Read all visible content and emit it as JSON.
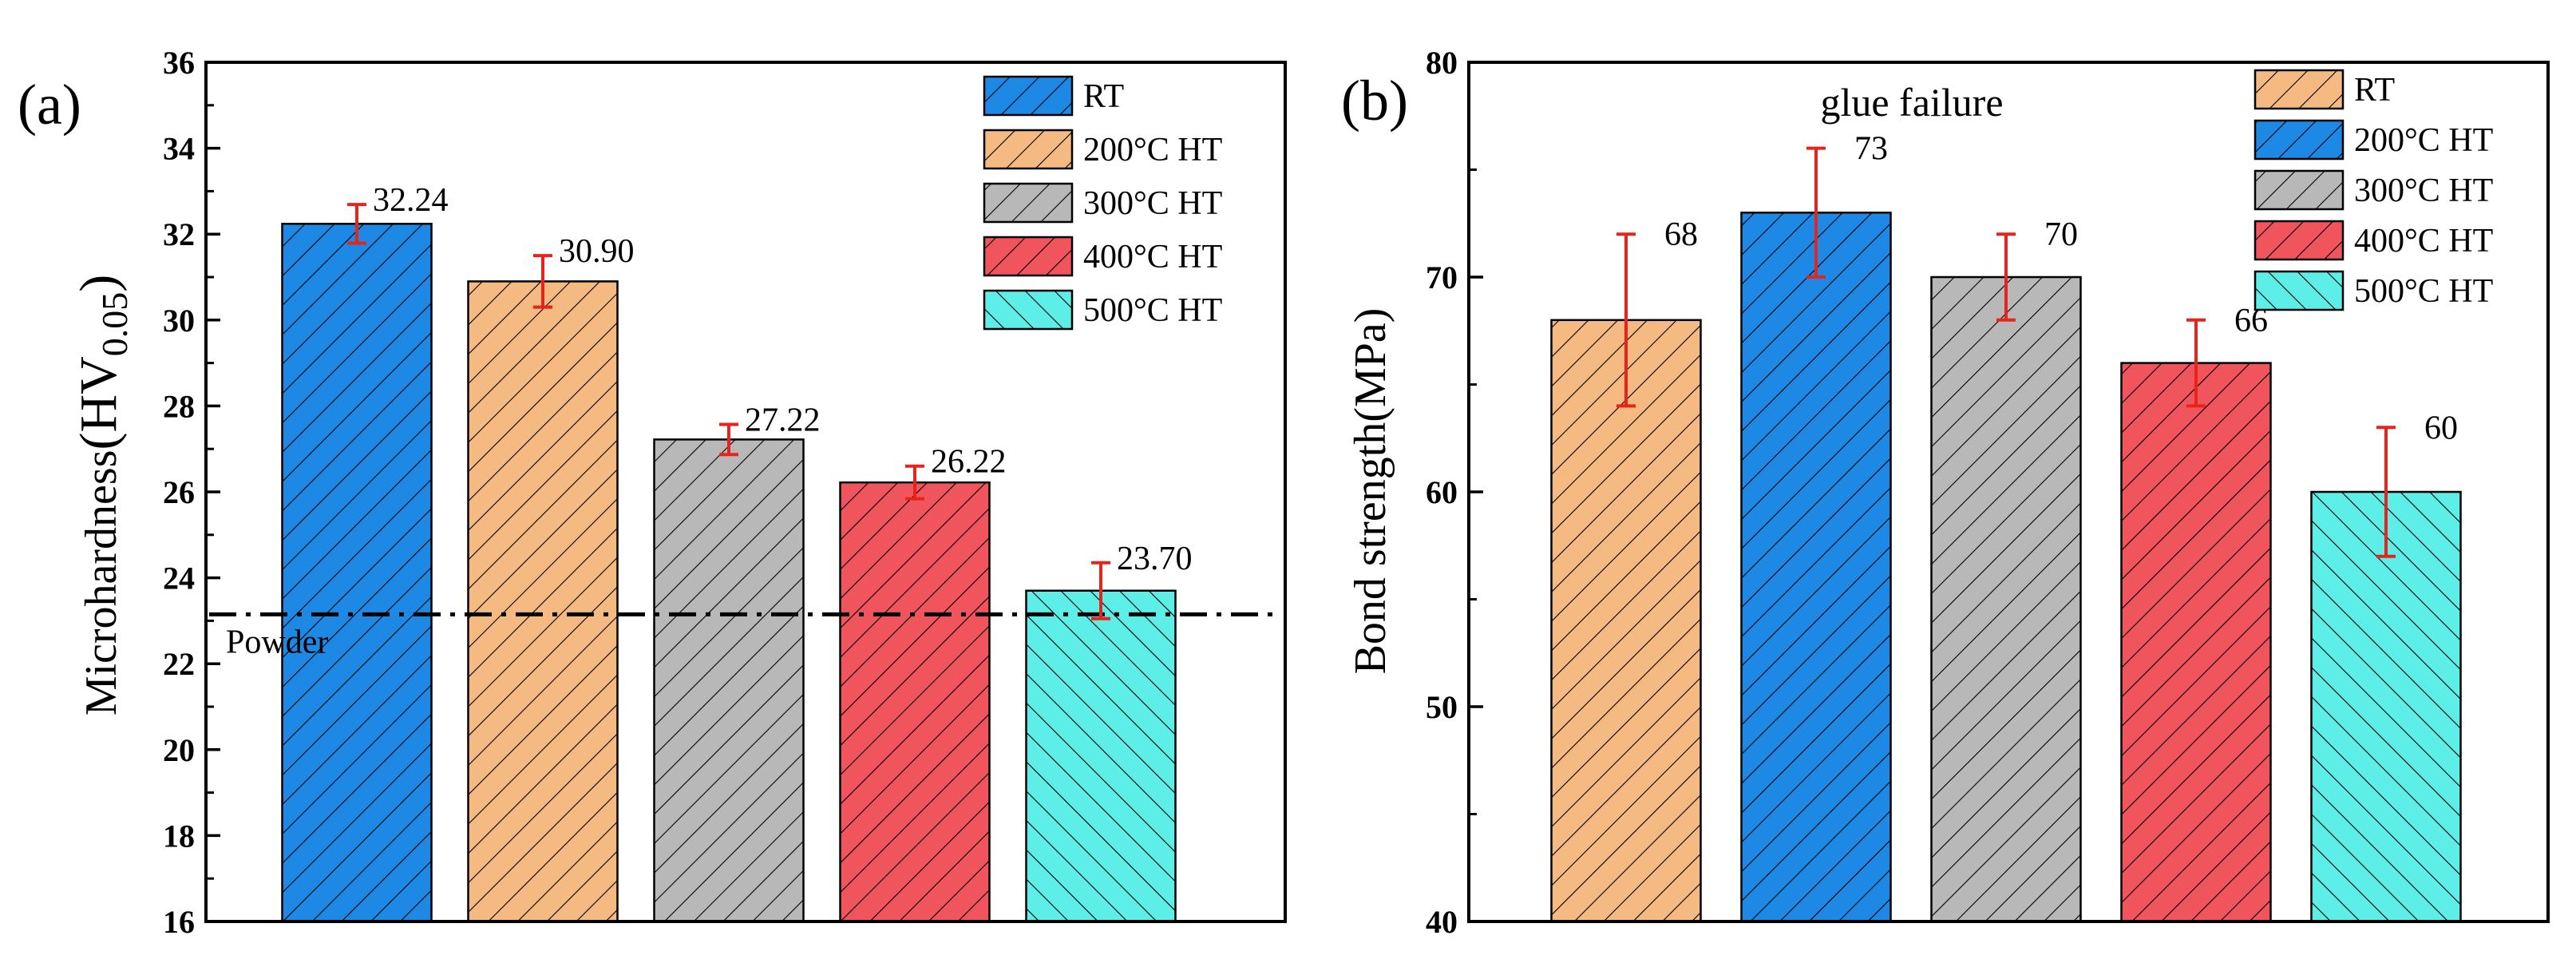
{
  "chart_data": [
    {
      "type": "bar",
      "panel_label": "(a)",
      "ylabel": "Microhardness(HV0.05)",
      "ylabel_main": "Microhardness",
      "ylabel_unit_open": "(HV",
      "ylabel_unit_sub": "0.05",
      "ylabel_unit_close": ")",
      "ylim": [
        16,
        36
      ],
      "yticks": [
        16,
        18,
        20,
        22,
        24,
        26,
        28,
        30,
        32,
        34,
        36
      ],
      "categories": [
        "RT",
        "200°C HT",
        "300°C HT",
        "400°C HT",
        "500°C HT"
      ],
      "values": [
        32.24,
        30.9,
        27.22,
        26.22,
        23.7
      ],
      "value_labels": [
        "32.24",
        "30.90",
        "27.22",
        "26.22",
        "23.70"
      ],
      "errors": [
        0.45,
        0.6,
        0.35,
        0.38,
        0.65
      ],
      "colors": [
        "#1e88e5",
        "#f5b982",
        "#b8b8b8",
        "#f0555d",
        "#5eeee8"
      ],
      "legend": [
        "RT",
        "200°C HT",
        "300°C HT",
        "400°C HT",
        "500°C HT"
      ],
      "legend_position": "top-right",
      "reference_line": {
        "label": "Powder",
        "value": 23.15
      }
    },
    {
      "type": "bar",
      "panel_label": "(b)",
      "ylabel": "Bond strength(MPa)",
      "ylim": [
        40,
        80
      ],
      "yticks": [
        40,
        50,
        60,
        70,
        80
      ],
      "categories": [
        "RT",
        "200°C HT",
        "300°C HT",
        "400°C HT",
        "500°C HT"
      ],
      "values": [
        68,
        73,
        70,
        66,
        60
      ],
      "value_labels": [
        "68",
        "73",
        "70",
        "66",
        "60"
      ],
      "errors": [
        4,
        3,
        2,
        2,
        3
      ],
      "colors": [
        "#f5b982",
        "#1e88e5",
        "#b8b8b8",
        "#f0555d",
        "#5eeee8"
      ],
      "legend": [
        "RT",
        "200°C HT",
        "300°C HT",
        "400°C HT",
        "500°C HT"
      ],
      "legend_position": "top-right",
      "annotation": {
        "text": "glue failure",
        "color": "#e8231a"
      }
    }
  ],
  "error_bar_color": "#e8231a"
}
